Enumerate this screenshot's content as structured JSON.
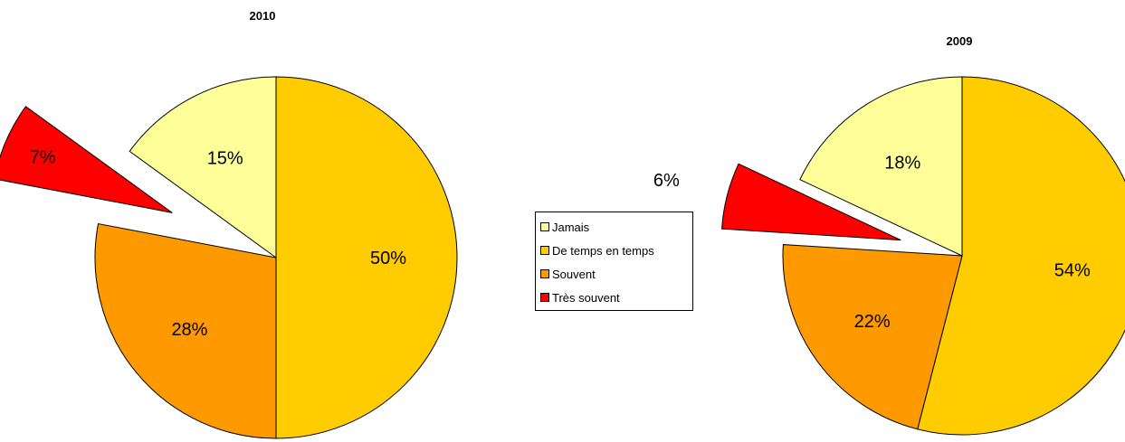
{
  "colors": {
    "Jamais": "#ffff99",
    "De temps en temps": "#ffcc00",
    "Souvent": "#ff9900",
    "Très souvent": "#ff0000"
  },
  "legend": {
    "placement": "center",
    "items": [
      "Jamais",
      "De temps en temps",
      "Souvent",
      "Très souvent"
    ]
  },
  "chart_data": [
    {
      "type": "pie",
      "title": "2010",
      "start": "12 o'clock, clockwise",
      "exploded": [
        "Très souvent"
      ],
      "categories": [
        "De temps en temps",
        "Souvent",
        "Très souvent",
        "Jamais"
      ],
      "values": [
        50,
        28,
        7,
        15
      ],
      "labels": [
        "50%",
        "28%",
        "7%",
        "15%"
      ]
    },
    {
      "type": "pie",
      "title": "2009",
      "start": "12 o'clock, clockwise",
      "exploded": [
        "Très souvent"
      ],
      "categories": [
        "De temps en temps",
        "Souvent",
        "Très souvent",
        "Jamais"
      ],
      "values": [
        54,
        22,
        6,
        18
      ],
      "labels": [
        "54%",
        "22%",
        "6%",
        "18%"
      ]
    }
  ]
}
